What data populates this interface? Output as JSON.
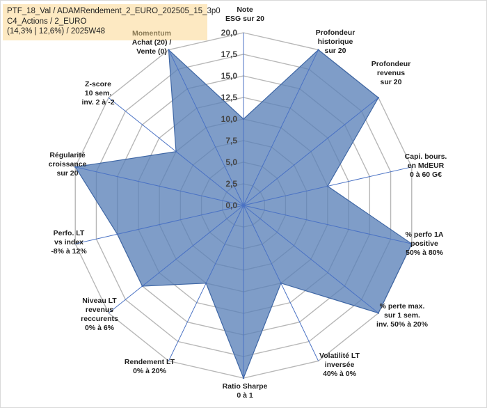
{
  "title_box": {
    "line1": "PTF_18_Val / ADAMRendement_2_EURO_202505_15_3p0",
    "line2": "C4_Actions / 2_EURO",
    "line3": "(14,3% | 12,6%) / 2025W48"
  },
  "colors": {
    "fill": "#5b82b8",
    "stroke": "#3f67a5",
    "grid": "#b7b7b7",
    "spoke": "#4a72c4",
    "title_bg": "#fde9c2"
  },
  "chart_data": {
    "type": "radar",
    "rmax": 20,
    "tick_values": [
      0,
      2.5,
      5,
      7.5,
      10,
      12.5,
      15,
      17.5,
      20
    ],
    "tick_labels": [
      "0,0",
      "2,5",
      "5,0",
      "7,5",
      "10,0",
      "12,5",
      "15,0",
      "17,5",
      "20,0"
    ],
    "axes": [
      {
        "lines": [
          "Note",
          "ESG sur 20"
        ],
        "anchor": "middle"
      },
      {
        "lines": [
          "Profondeur",
          "historique",
          "sur 20"
        ],
        "anchor": "middle"
      },
      {
        "lines": [
          "Profondeur",
          "revenus",
          "sur 20"
        ],
        "anchor": "middle"
      },
      {
        "lines": [
          "Capi. bours.",
          "en MdEUR",
          "0 à 60 G€"
        ],
        "anchor": "middle"
      },
      {
        "lines": [
          "% perfo 1A",
          "positive",
          "50% à 80%"
        ],
        "anchor": "middle"
      },
      {
        "lines": [
          "% perte max.",
          "sur 1 sem.",
          "inv. 50% à 20%"
        ],
        "anchor": "middle"
      },
      {
        "lines": [
          "Volatilité LT",
          "inversée",
          "40% à 0%"
        ],
        "anchor": "middle"
      },
      {
        "lines": [
          "Ratio Sharpe",
          "0 à 1"
        ],
        "anchor": "middle"
      },
      {
        "lines": [
          "Rendement LT",
          "0% à 20%"
        ],
        "anchor": "middle"
      },
      {
        "lines": [
          "Niveau LT",
          "revenus",
          "reccurents",
          "0% à 6%"
        ],
        "anchor": "middle"
      },
      {
        "lines": [
          "Perfo. LT",
          "vs index",
          "-8% à 12%"
        ],
        "anchor": "middle"
      },
      {
        "lines": [
          "Régularité",
          "croissance",
          "sur 20"
        ],
        "anchor": "middle"
      },
      {
        "lines": [
          "Z-score",
          "10 sem.",
          "inv. 2 à -2"
        ],
        "anchor": "middle"
      },
      {
        "lines": [
          "Momentum",
          "Achat (20) /",
          "Vente (0)"
        ],
        "anchor": "middle",
        "first_line_muted": true
      }
    ],
    "values": [
      10,
      20,
      20,
      10,
      20,
      20,
      10,
      20,
      10,
      15,
      15,
      20,
      10,
      20
    ],
    "grid": true,
    "legend": "none"
  }
}
